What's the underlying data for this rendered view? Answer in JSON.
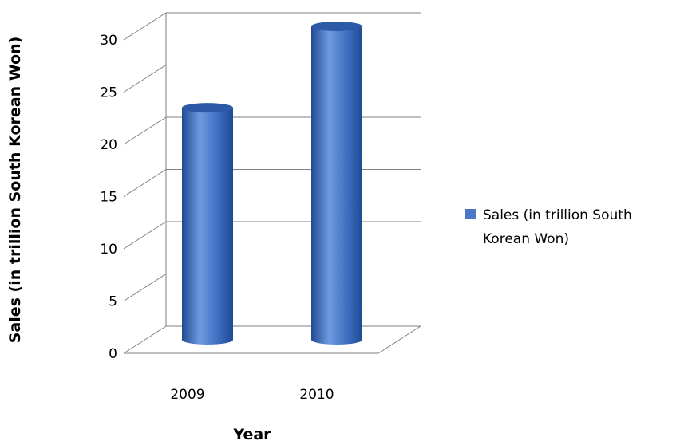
{
  "chart_data": {
    "type": "bar",
    "style": "3d-cylinder",
    "categories": [
      "2009",
      "2010"
    ],
    "series": [
      {
        "name": "Sales (in trillion South Korean Won)",
        "values": [
          22.2,
          30.0
        ]
      }
    ],
    "xlabel": "Year",
    "ylabel": "Sales (in trillion South Korean Won)",
    "ylim": [
      0,
      30
    ],
    "yticks": [
      0,
      5,
      10,
      15,
      20,
      25,
      30
    ],
    "grid": true,
    "legend_position": "right",
    "legend_lines": [
      "Sales (in trillion South",
      "Korean Won)"
    ],
    "colors": {
      "bar_light": "#6f9be0",
      "bar_mid": "#3e6fc2",
      "bar_dark": "#1f4a92",
      "bar_top": "#2d5aa6",
      "grid": "#7f7f7f",
      "legend_swatch": "#4a78c4"
    }
  }
}
